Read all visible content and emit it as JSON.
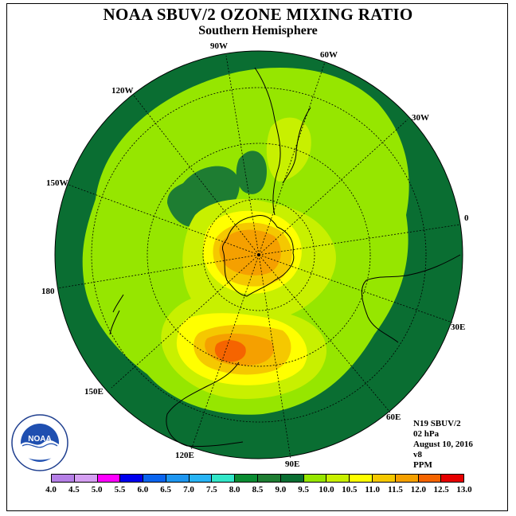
{
  "title": "NOAA SBUV/2 OZONE MIXING RATIO",
  "subtitle": "Southern Hemisphere",
  "longitude_labels": [
    "90W",
    "60W",
    "30W",
    "0",
    "30E",
    "60E",
    "90E",
    "120E",
    "150E",
    "180",
    "150W",
    "120W"
  ],
  "info": {
    "instrument": "N19 SBUV/2",
    "pressure": "02 hPa",
    "date": "August 10, 2016",
    "version": "v8",
    "units": "PPM"
  },
  "colorbar": {
    "ticks": [
      "4.0",
      "4.5",
      "5.0",
      "5.5",
      "6.0",
      "6.5",
      "7.0",
      "7.5",
      "8.0",
      "8.5",
      "9.0",
      "9.5",
      "10.0",
      "10.5",
      "11.0",
      "11.5",
      "12.0",
      "12.5",
      "13.0"
    ],
    "colors": [
      "#b57fe6",
      "#d59ff2",
      "#ff00ff",
      "#0000ee",
      "#0a64ee",
      "#1e96f0",
      "#28b4f5",
      "#32e6c8",
      "#0a8c32",
      "#1e7d32",
      "#0a6e32",
      "#96e600",
      "#c8f000",
      "#ffff00",
      "#f5c800",
      "#f5a000",
      "#f56400",
      "#e60000",
      "#8c5a3c"
    ]
  },
  "map_colors": {
    "ocean_ring": "#1e7d32",
    "mid_green": "#329632",
    "lime": "#96e600",
    "yellow_green": "#c8f000",
    "yellow": "#ffff00",
    "gold": "#f5c800",
    "orange": "#f5a000",
    "red_orange": "#f56400"
  }
}
